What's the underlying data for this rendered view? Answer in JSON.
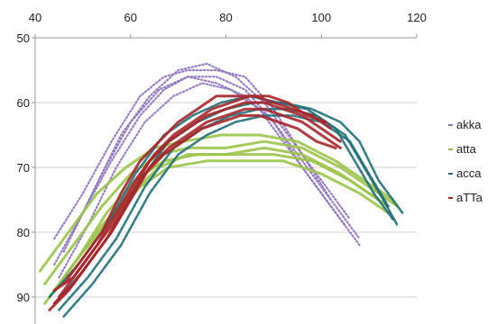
{
  "chart_data": {
    "type": "line",
    "xlim": [
      40,
      120
    ],
    "ylim": [
      50,
      92
    ],
    "y_inverted": true,
    "x_axis_position": "top",
    "x_ticks": [
      40,
      60,
      80,
      100,
      120
    ],
    "y_ticks": [
      50,
      60,
      70,
      80,
      90
    ],
    "grid": "horizontal",
    "legend_position": "right",
    "series": [
      {
        "name": "akka",
        "color": "#8e72c0",
        "style": "dotted",
        "runs": [
          [
            [
              44,
              81
            ],
            [
              50,
              74
            ],
            [
              56,
              66
            ],
            [
              62,
              59
            ],
            [
              67,
              56
            ],
            [
              72,
              55
            ],
            [
              78,
              55
            ],
            [
              84,
              56
            ],
            [
              90,
              61
            ],
            [
              96,
              68
            ],
            [
              102,
              75
            ],
            [
              108,
              81
            ]
          ],
          [
            [
              44,
              85
            ],
            [
              50,
              77
            ],
            [
              56,
              69
            ],
            [
              62,
              62
            ],
            [
              67,
              58
            ],
            [
              72,
              56
            ],
            [
              78,
              56
            ],
            [
              84,
              58
            ],
            [
              90,
              63
            ],
            [
              96,
              70
            ],
            [
              102,
              76
            ],
            [
              108,
              82
            ]
          ],
          [
            [
              46,
              83
            ],
            [
              52,
              74
            ],
            [
              58,
              65
            ],
            [
              64,
              59
            ],
            [
              70,
              55
            ],
            [
              76,
              54
            ],
            [
              82,
              56
            ],
            [
              88,
              60
            ],
            [
              94,
              66
            ],
            [
              100,
              72
            ],
            [
              106,
              78
            ]
          ],
          [
            [
              48,
              80
            ],
            [
              54,
              71
            ],
            [
              60,
              63
            ],
            [
              66,
              58
            ],
            [
              72,
              56
            ],
            [
              78,
              57
            ],
            [
              84,
              59
            ],
            [
              90,
              63
            ],
            [
              96,
              69
            ],
            [
              102,
              75
            ]
          ],
          [
            [
              45,
              87
            ],
            [
              51,
              79
            ],
            [
              57,
              70
            ],
            [
              63,
              63
            ],
            [
              69,
              59
            ],
            [
              75,
              57
            ],
            [
              81,
              58
            ],
            [
              87,
              61
            ],
            [
              93,
              67
            ],
            [
              99,
              73
            ],
            [
              105,
              79
            ]
          ]
        ]
      },
      {
        "name": "atta",
        "color": "#9bc44a",
        "style": "solid",
        "runs": [
          [
            [
              42,
              88
            ],
            [
              48,
              82
            ],
            [
              54,
              76
            ],
            [
              60,
              71
            ],
            [
              66,
              68
            ],
            [
              72,
              67
            ],
            [
              80,
              67
            ],
            [
              88,
              66
            ],
            [
              96,
              67
            ],
            [
              104,
              70
            ],
            [
              112,
              74
            ],
            [
              116,
              76
            ]
          ],
          [
            [
              43,
              90
            ],
            [
              49,
              84
            ],
            [
              55,
              77
            ],
            [
              61,
              72
            ],
            [
              67,
              69
            ],
            [
              74,
              68
            ],
            [
              82,
              68
            ],
            [
              90,
              68
            ],
            [
              98,
              69
            ],
            [
              106,
              72
            ],
            [
              114,
              76
            ]
          ],
          [
            [
              41,
              86
            ],
            [
              47,
              80
            ],
            [
              53,
              74
            ],
            [
              59,
              70
            ],
            [
              65,
              67
            ],
            [
              71,
              66
            ],
            [
              79,
              65
            ],
            [
              87,
              65
            ],
            [
              95,
              66
            ],
            [
              103,
              69
            ],
            [
              111,
              73
            ],
            [
              115,
              75
            ]
          ],
          [
            [
              44,
              89
            ],
            [
              50,
              83
            ],
            [
              56,
              78
            ],
            [
              62,
              73
            ],
            [
              68,
              70
            ],
            [
              76,
              69
            ],
            [
              84,
              69
            ],
            [
              92,
              69
            ],
            [
              100,
              71
            ],
            [
              108,
              74
            ],
            [
              114,
              77
            ]
          ],
          [
            [
              42,
              91
            ],
            [
              48,
              85
            ],
            [
              54,
              79
            ],
            [
              60,
              74
            ],
            [
              66,
              70
            ],
            [
              72,
              68
            ],
            [
              80,
              68
            ],
            [
              88,
              67
            ],
            [
              96,
              68
            ],
            [
              104,
              71
            ],
            [
              112,
              75
            ]
          ]
        ]
      },
      {
        "name": "acca",
        "color": "#1f6f7a",
        "style": "dashed",
        "runs": [
          [
            [
              44,
              91
            ],
            [
              50,
              86
            ],
            [
              56,
              80
            ],
            [
              62,
              72
            ],
            [
              68,
              66
            ],
            [
              74,
              63
            ],
            [
              80,
              61
            ],
            [
              86,
              60
            ],
            [
              92,
              60
            ],
            [
              98,
              61
            ],
            [
              104,
              63
            ],
            [
              108,
              66
            ],
            [
              112,
              72
            ],
            [
              117,
              77
            ]
          ],
          [
            [
              45,
              92
            ],
            [
              51,
              87
            ],
            [
              57,
              81
            ],
            [
              63,
              73
            ],
            [
              69,
              67
            ],
            [
              75,
              64
            ],
            [
              81,
              62
            ],
            [
              87,
              61
            ],
            [
              93,
              61
            ],
            [
              99,
              62
            ],
            [
              105,
              65
            ],
            [
              109,
              70
            ],
            [
              113,
              75
            ],
            [
              116,
              79
            ]
          ],
          [
            [
              43,
              90
            ],
            [
              49,
              85
            ],
            [
              55,
              79
            ],
            [
              61,
              71
            ],
            [
              67,
              65
            ],
            [
              73,
              62
            ],
            [
              79,
              60
            ],
            [
              85,
              59
            ],
            [
              91,
              60
            ],
            [
              97,
              61
            ],
            [
              103,
              64
            ],
            [
              107,
              69
            ],
            [
              111,
              74
            ],
            [
              115,
              78
            ]
          ],
          [
            [
              46,
              93
            ],
            [
              52,
              88
            ],
            [
              58,
              82
            ],
            [
              64,
              74
            ],
            [
              70,
              68
            ],
            [
              76,
              65
            ],
            [
              82,
              63
            ],
            [
              88,
              62
            ],
            [
              94,
              62
            ],
            [
              100,
              63
            ],
            [
              106,
              66
            ],
            [
              110,
              71
            ],
            [
              114,
              76
            ]
          ]
        ]
      },
      {
        "name": "aTTa",
        "color": "#a8262a",
        "style": "solid",
        "runs": [
          [
            [
              44,
              89
            ],
            [
              48,
              87
            ],
            [
              52,
              83
            ],
            [
              56,
              79
            ],
            [
              60,
              74
            ],
            [
              64,
              69
            ],
            [
              68,
              66
            ],
            [
              72,
              64
            ],
            [
              76,
              62
            ],
            [
              80,
              61
            ],
            [
              84,
              60
            ],
            [
              88,
              60
            ],
            [
              92,
              61
            ],
            [
              96,
              62
            ],
            [
              100,
              64
            ],
            [
              104,
              66
            ]
          ],
          [
            [
              44,
              91
            ],
            [
              48,
              88
            ],
            [
              52,
              84
            ],
            [
              56,
              80
            ],
            [
              60,
              75
            ],
            [
              64,
              70
            ],
            [
              68,
              67
            ],
            [
              72,
              65
            ],
            [
              76,
              63
            ],
            [
              80,
              62
            ],
            [
              84,
              61
            ],
            [
              88,
              61
            ],
            [
              92,
              62
            ],
            [
              96,
              63
            ],
            [
              100,
              65
            ],
            [
              104,
              67
            ]
          ],
          [
            [
              45,
              90
            ],
            [
              49,
              86
            ],
            [
              53,
              82
            ],
            [
              57,
              77
            ],
            [
              61,
              72
            ],
            [
              65,
              68
            ],
            [
              69,
              65
            ],
            [
              73,
              63
            ],
            [
              77,
              61
            ],
            [
              81,
              60
            ],
            [
              85,
              59
            ],
            [
              89,
              59
            ],
            [
              93,
              60
            ],
            [
              97,
              62
            ],
            [
              101,
              63
            ]
          ],
          [
            [
              43,
              92
            ],
            [
              47,
              89
            ],
            [
              51,
              85
            ],
            [
              55,
              81
            ],
            [
              59,
              76
            ],
            [
              63,
              71
            ],
            [
              67,
              68
            ],
            [
              71,
              66
            ],
            [
              75,
              64
            ],
            [
              79,
              63
            ],
            [
              83,
              62
            ],
            [
              87,
              62
            ],
            [
              91,
              63
            ],
            [
              95,
              64
            ],
            [
              99,
              66
            ],
            [
              103,
              67
            ]
          ],
          [
            [
              46,
              88
            ],
            [
              50,
              84
            ],
            [
              54,
              80
            ],
            [
              58,
              74
            ],
            [
              62,
              69
            ],
            [
              66,
              66
            ],
            [
              70,
              63
            ],
            [
              74,
              61
            ],
            [
              78,
              59
            ],
            [
              82,
              59
            ],
            [
              86,
              59
            ],
            [
              90,
              60
            ],
            [
              94,
              61
            ],
            [
              98,
              62
            ],
            [
              102,
              64
            ]
          ]
        ]
      }
    ]
  }
}
